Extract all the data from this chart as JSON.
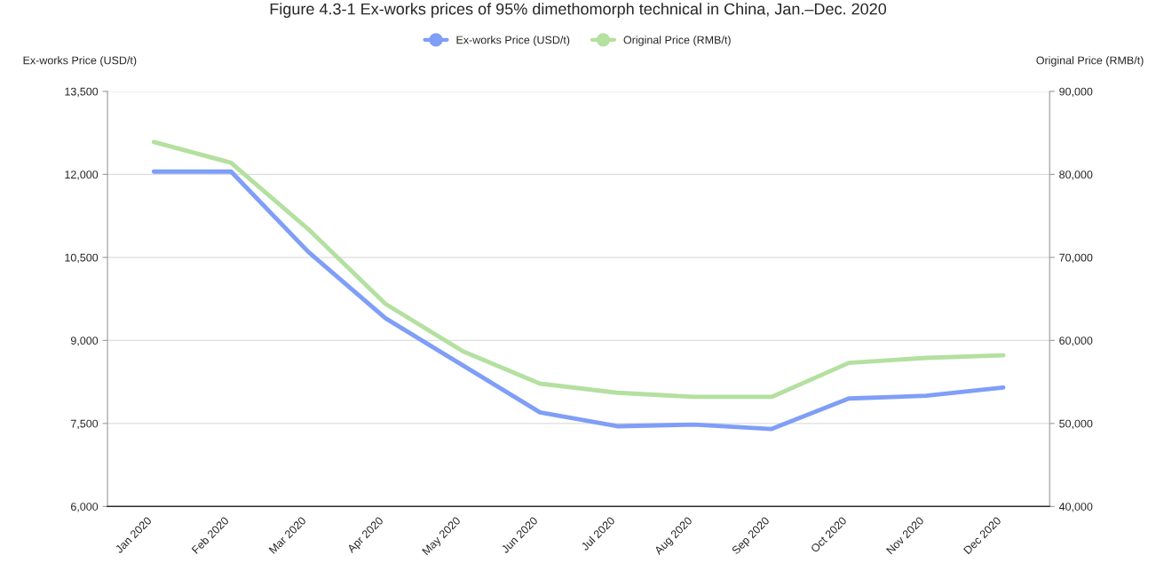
{
  "chart_data": {
    "type": "line",
    "title": "Figure 4.3-1 Ex-works prices of 95% dimethomorph technical in China, Jan.–Dec. 2020",
    "ylabel": "Ex-works Price (USD/t)",
    "y2label": "Original Price (RMB/t)",
    "categories": [
      "Jan 2020",
      "Feb 2020",
      "Mar 2020",
      "Apr 2020",
      "May 2020",
      "Jun 2020",
      "Jul 2020",
      "Aug 2020",
      "Sep 2020",
      "Oct 2020",
      "Nov 2020",
      "Dec 2020"
    ],
    "series": [
      {
        "name": "Ex-works Price (USD/t)",
        "color": "#7f9ef7",
        "values": [
          12050,
          12050,
          10600,
          9400,
          8550,
          7700,
          7450,
          7480,
          7400,
          7950,
          8000,
          8150
        ]
      },
      {
        "name": "Original Price (RMB/t)",
        "color": "#b4e0a0",
        "axis": "y2",
        "values": [
          83900,
          81400,
          73400,
          64400,
          58700,
          54800,
          53700,
          53200,
          53200,
          57300,
          57900,
          58200
        ]
      }
    ],
    "ylim": [
      6000,
      13500
    ],
    "yticks": [
      {
        "value": 6000,
        "label": "6,000"
      },
      {
        "value": 7500,
        "label": "7,500"
      },
      {
        "value": 9000,
        "label": "9,000"
      },
      {
        "value": 10500,
        "label": "10,500"
      },
      {
        "value": 12000,
        "label": "12,000"
      },
      {
        "value": 13500,
        "label": "13,500"
      }
    ],
    "y2lim": [
      40000,
      90000
    ],
    "y2ticks": [
      {
        "value": 40000,
        "label": "40,000"
      },
      {
        "value": 50000,
        "label": "50,000"
      },
      {
        "value": 60000,
        "label": "60,000"
      },
      {
        "value": 70000,
        "label": "70,000"
      },
      {
        "value": 80000,
        "label": "80,000"
      },
      {
        "value": 90000,
        "label": "90,000"
      }
    ],
    "grid": "y",
    "legend": "top",
    "marker": "none",
    "line_style": "solid"
  }
}
